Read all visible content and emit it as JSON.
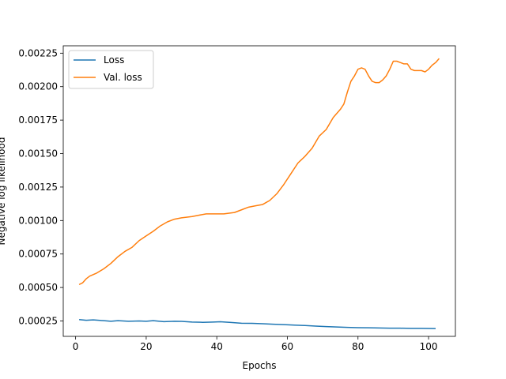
{
  "chart_data": {
    "type": "line",
    "title": "",
    "xlabel": "Epochs",
    "ylabel": "Negative log likelihood",
    "xlim": [
      -3.5,
      107.6
    ],
    "ylim": [
      0.000135,
      0.002305
    ],
    "xticks": [
      0,
      20,
      40,
      60,
      80,
      100
    ],
    "yticks": [
      0.00025,
      0.0005,
      0.00075,
      0.001,
      0.00125,
      0.0015,
      0.00175,
      0.002,
      0.00225
    ],
    "ytick_labels": [
      "0.00025",
      "0.00050",
      "0.00075",
      "0.00100",
      "0.00125",
      "0.00150",
      "0.00175",
      "0.00200",
      "0.00225"
    ],
    "grid": false,
    "legend": "top-left",
    "series": [
      {
        "name": "Loss",
        "color": "#1f77b4",
        "points": [
          [
            1,
            0.00026
          ],
          [
            3,
            0.000255
          ],
          [
            5,
            0.000258
          ],
          [
            8,
            0.000252
          ],
          [
            10,
            0.000248
          ],
          [
            12,
            0.000252
          ],
          [
            15,
            0.000248
          ],
          [
            18,
            0.00025
          ],
          [
            20,
            0.000248
          ],
          [
            22,
            0.000252
          ],
          [
            25,
            0.000245
          ],
          [
            28,
            0.000248
          ],
          [
            30,
            0.000247
          ],
          [
            33,
            0.000242
          ],
          [
            36,
            0.00024
          ],
          [
            39,
            0.000242
          ],
          [
            41,
            0.000244
          ],
          [
            44,
            0.000239
          ],
          [
            47,
            0.000233
          ],
          [
            50,
            0.000232
          ],
          [
            53,
            0.000229
          ],
          [
            56,
            0.000226
          ],
          [
            59,
            0.000223
          ],
          [
            62,
            0.000219
          ],
          [
            65,
            0.000216
          ],
          [
            68,
            0.000212
          ],
          [
            71,
            0.000208
          ],
          [
            74,
            0.000205
          ],
          [
            77,
            0.000202
          ],
          [
            80,
            0.0002
          ],
          [
            83,
            0.000199
          ],
          [
            86,
            0.000198
          ],
          [
            89,
            0.000196
          ],
          [
            92,
            0.000196
          ],
          [
            95,
            0.000195
          ],
          [
            98,
            0.000195
          ],
          [
            100,
            0.000194
          ],
          [
            102,
            0.000193
          ]
        ]
      },
      {
        "name": "Val. loss",
        "color": "#ff7f0e",
        "points": [
          [
            1,
            0.000522
          ],
          [
            2,
            0.000535
          ],
          [
            3,
            0.000565
          ],
          [
            4,
            0.000585
          ],
          [
            6,
            0.000608
          ],
          [
            8,
            0.00064
          ],
          [
            10,
            0.00068
          ],
          [
            12,
            0.00073
          ],
          [
            14,
            0.00077
          ],
          [
            16,
            0.0008
          ],
          [
            18,
            0.00085
          ],
          [
            20,
            0.000885
          ],
          [
            22,
            0.00092
          ],
          [
            24,
            0.00096
          ],
          [
            26,
            0.00099
          ],
          [
            28,
            0.00101
          ],
          [
            30,
            0.00102
          ],
          [
            33,
            0.00103
          ],
          [
            35,
            0.00104
          ],
          [
            37,
            0.00105
          ],
          [
            39,
            0.00105
          ],
          [
            42,
            0.00105
          ],
          [
            45,
            0.00106
          ],
          [
            47,
            0.00108
          ],
          [
            49,
            0.0011
          ],
          [
            51,
            0.00111
          ],
          [
            53,
            0.00112
          ],
          [
            55,
            0.00115
          ],
          [
            57,
            0.0012
          ],
          [
            59,
            0.00127
          ],
          [
            61,
            0.00135
          ],
          [
            63,
            0.00143
          ],
          [
            65,
            0.00148
          ],
          [
            67,
            0.00154
          ],
          [
            69,
            0.00163
          ],
          [
            71,
            0.00168
          ],
          [
            73,
            0.00177
          ],
          [
            75,
            0.00183
          ],
          [
            76,
            0.00187
          ],
          [
            77,
            0.00196
          ],
          [
            78,
            0.00204
          ],
          [
            79,
            0.00208
          ],
          [
            80,
            0.00213
          ],
          [
            81,
            0.00214
          ],
          [
            82,
            0.00213
          ],
          [
            83,
            0.00208
          ],
          [
            84,
            0.00204
          ],
          [
            85,
            0.00203
          ],
          [
            86,
            0.00203
          ],
          [
            87,
            0.00205
          ],
          [
            88,
            0.00208
          ],
          [
            89,
            0.00213
          ],
          [
            90,
            0.00219
          ],
          [
            91,
            0.00219
          ],
          [
            92,
            0.00218
          ],
          [
            93,
            0.00217
          ],
          [
            94,
            0.00217
          ],
          [
            95,
            0.00213
          ],
          [
            96,
            0.00212
          ],
          [
            97,
            0.00212
          ],
          [
            98,
            0.00212
          ],
          [
            99,
            0.00211
          ],
          [
            100,
            0.00213
          ],
          [
            101,
            0.00216
          ],
          [
            102,
            0.00218
          ],
          [
            103,
            0.00221
          ]
        ]
      }
    ]
  }
}
